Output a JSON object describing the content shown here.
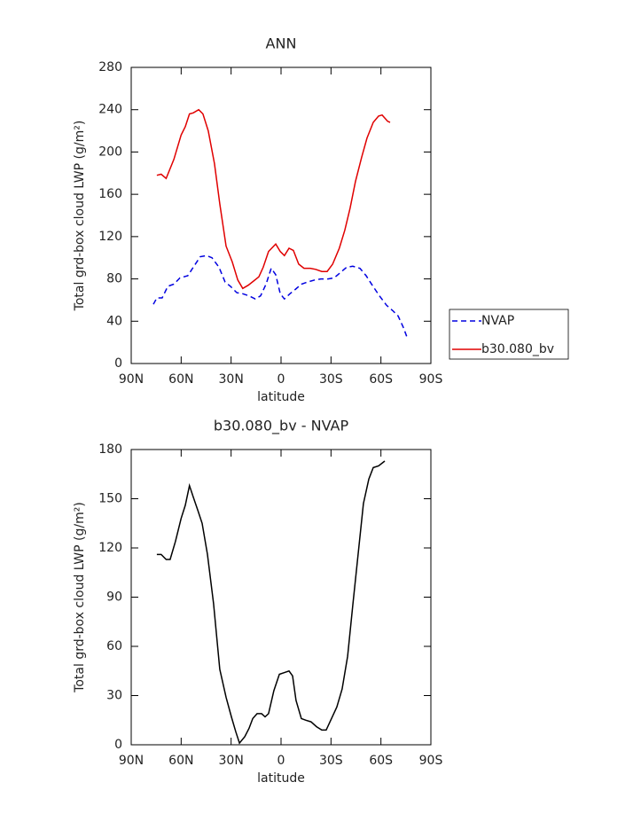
{
  "chart_data": [
    {
      "type": "line",
      "title": "ANN",
      "x_label": "latitude",
      "y_label": "Total grd-box cloud LWP (g/m²)",
      "xlim": [
        90,
        -90
      ],
      "xticks": [
        {
          "value": 90,
          "label": "90N"
        },
        {
          "value": 60,
          "label": "60N"
        },
        {
          "value": 30,
          "label": "30N"
        },
        0,
        {
          "value": -30,
          "label": "30S"
        },
        {
          "value": -60,
          "label": "60S"
        },
        {
          "value": -90,
          "label": "90S"
        }
      ],
      "ylim": [
        0,
        280
      ],
      "yticks": [
        0,
        40,
        80,
        120,
        160,
        200,
        240,
        280
      ],
      "legend": "right",
      "series": [
        {
          "name": "NVAP",
          "color": "#0000e0",
          "line_style": "dashed",
          "x": [
            76.7,
            74.6,
            71.4,
            68,
            64.4,
            60.7,
            56,
            52.7,
            48.5,
            44.7,
            41.5,
            37.3,
            33.6,
            30.4,
            26.6,
            23,
            19.2,
            15.5,
            12.3,
            9,
            5.9,
            3.2,
            0.5,
            -2,
            -5.3,
            -8.5,
            -12.2,
            -15.9,
            -20.2,
            -23.9,
            -28.2,
            -31.9,
            -35.7,
            -39.4,
            -43.1,
            -47.4,
            -51.1,
            -54.8,
            -59.1,
            -63.4,
            -67.1,
            -70.3,
            -73.5,
            -76.1
          ],
          "values": [
            56,
            62,
            62,
            73,
            75,
            81,
            83,
            91,
            101,
            102,
            100,
            91,
            77,
            73,
            67,
            66,
            64,
            61,
            64,
            75,
            90,
            84,
            66,
            61,
            66,
            70,
            75,
            77,
            79,
            80,
            80,
            81,
            86,
            91,
            92,
            90,
            83,
            74,
            64,
            55,
            50,
            45,
            34,
            23
          ]
        },
        {
          "name": "b30.080_bv",
          "color": "#e00000",
          "line_style": "solid",
          "x": [
            74.6,
            72,
            69,
            64.4,
            60,
            57.5,
            55,
            52.7,
            49.5,
            46.9,
            43.7,
            40,
            36.8,
            33,
            29.3,
            26,
            23,
            19.7,
            16.5,
            13.3,
            10.7,
            7.5,
            3.2,
            0.5,
            -2,
            -4.8,
            -7.4,
            -10.6,
            -13.8,
            -17.6,
            -20.8,
            -24.5,
            -27.7,
            -31,
            -35,
            -38.3,
            -41.5,
            -44.7,
            -48.4,
            -51.6,
            -55.4,
            -58.6,
            -60.7,
            -64,
            -65.5
          ],
          "values": [
            178,
            179,
            175,
            193,
            216,
            224,
            236,
            237,
            240,
            236,
            220,
            189,
            151,
            111,
            96,
            79,
            71,
            74,
            78,
            82,
            91,
            106,
            113,
            106,
            102,
            109,
            107,
            94,
            90,
            90,
            89,
            87,
            87,
            94,
            109,
            126,
            147,
            172,
            195,
            213,
            228,
            234,
            235,
            229,
            228
          ]
        }
      ]
    },
    {
      "type": "line",
      "title": "b30.080_bv - NVAP",
      "x_label": "latitude",
      "y_label": "Total grd-box cloud LWP (g/m²)",
      "xlim": [
        90,
        -90
      ],
      "xticks": [
        {
          "value": 90,
          "label": "90N"
        },
        {
          "value": 60,
          "label": "60N"
        },
        {
          "value": 30,
          "label": "30N"
        },
        0,
        {
          "value": -30,
          "label": "30S"
        },
        {
          "value": -60,
          "label": "60S"
        },
        {
          "value": -90,
          "label": "90S"
        }
      ],
      "ylim": [
        0,
        180
      ],
      "yticks": [
        0,
        30,
        60,
        90,
        120,
        150,
        180
      ],
      "series": [
        {
          "color": "#000000",
          "line_style": "solid",
          "x": [
            74.6,
            72,
            69,
            66.6,
            63.4,
            60,
            57.5,
            55,
            52.7,
            50,
            47.4,
            44.2,
            40.5,
            36.8,
            33,
            29.8,
            27.2,
            25,
            21.8,
            19.2,
            17,
            14.4,
            11.7,
            9.6,
            7.5,
            4.3,
            1,
            -2,
            -4.8,
            -6.9,
            -9,
            -12.2,
            -14.9,
            -18,
            -21.3,
            -24.5,
            -27.1,
            -30.3,
            -33.5,
            -36.7,
            -40,
            -43.1,
            -46.3,
            -49.5,
            -52.7,
            -55.4,
            -58.6,
            -62.3
          ],
          "values": [
            116,
            116,
            113,
            113,
            124,
            138,
            146,
            158,
            151,
            143,
            135,
            116,
            86,
            46,
            29,
            17,
            8,
            1,
            5,
            10,
            16,
            19,
            19,
            17,
            19,
            33,
            43,
            44,
            45,
            42,
            27,
            16,
            15,
            14,
            11,
            9,
            9,
            16,
            23,
            34,
            54,
            85,
            116,
            147,
            162,
            169,
            170,
            173
          ]
        }
      ]
    }
  ]
}
